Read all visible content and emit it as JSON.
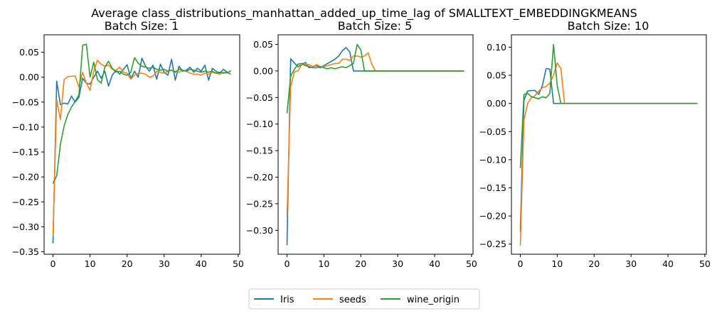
{
  "figure": {
    "suptitle": "Average class_distributions_manhattan_added_up_time_lag of SMALLTEXT_EMBEDDINGKMEANS"
  },
  "legend": {
    "placement": "bottom-center",
    "entries": [
      {
        "name": "Iris",
        "color": "#1f77b4"
      },
      {
        "name": "seeds",
        "color": "#ff7f0e"
      },
      {
        "name": "wine_origin",
        "color": "#2ca02c"
      }
    ]
  },
  "chart_data": [
    {
      "type": "line",
      "title": "Batch Size: 1",
      "xlabel": "",
      "ylabel": "",
      "xlim": [
        -2.4,
        50.4
      ],
      "ylim": [
        -0.355,
        0.085
      ],
      "xticks": [
        0,
        10,
        20,
        30,
        40,
        50
      ],
      "yticks": [
        -0.35,
        -0.3,
        -0.25,
        -0.2,
        -0.15,
        -0.1,
        -0.05,
        0.0,
        0.05
      ],
      "ytick_labels": [
        "−0.35",
        "−0.30",
        "−0.25",
        "−0.20",
        "−0.15",
        "−0.10",
        "−0.05",
        "0.00",
        "0.05"
      ],
      "grid": false,
      "series": [
        {
          "name": "Iris",
          "color": "#1f77b4",
          "x": [
            0,
            1,
            2,
            3,
            4,
            5,
            6,
            7,
            8,
            9,
            10,
            11,
            12,
            13,
            14,
            15,
            16,
            17,
            18,
            19,
            20,
            21,
            22,
            23,
            24,
            25,
            26,
            27,
            28,
            29,
            30,
            31,
            32,
            33,
            34,
            35,
            36,
            37,
            38,
            39,
            40,
            41,
            42,
            43,
            44,
            45,
            46,
            47,
            48
          ],
          "y": [
            -0.333,
            -0.008,
            -0.055,
            -0.052,
            -0.054,
            -0.038,
            -0.05,
            -0.04,
            -0.002,
            -0.012,
            -0.014,
            0.0,
            0.012,
            -0.002,
            0.012,
            -0.018,
            0.004,
            0.014,
            0.006,
            0.016,
            0.025,
            -0.003,
            0.012,
            0.0,
            0.038,
            0.022,
            0.012,
            0.024,
            -0.004,
            0.026,
            0.01,
            0.004,
            0.036,
            -0.006,
            0.022,
            0.012,
            0.014,
            0.02,
            0.01,
            0.018,
            0.012,
            0.024,
            -0.006,
            0.018,
            0.012,
            0.008,
            0.016,
            0.01,
            0.012
          ]
        },
        {
          "name": "seeds",
          "color": "#ff7f0e",
          "x": [
            0,
            1,
            2,
            3,
            4,
            5,
            6,
            7,
            8,
            9,
            10,
            11,
            12,
            13,
            14,
            15,
            16,
            17,
            18,
            19,
            20,
            21,
            22,
            23,
            24,
            25,
            26,
            27,
            28,
            29,
            30,
            31,
            32,
            33,
            34,
            35,
            36,
            37,
            38,
            39,
            40,
            41,
            42,
            43,
            44,
            45,
            46,
            47,
            48
          ],
          "y": [
            -0.318,
            -0.045,
            -0.085,
            -0.005,
            0.001,
            0.002,
            0.002,
            -0.02,
            0.01,
            -0.012,
            -0.026,
            0.012,
            0.034,
            0.026,
            0.022,
            0.024,
            0.016,
            0.014,
            0.02,
            0.01,
            0.008,
            -0.004,
            0.004,
            0.008,
            0.008,
            0.006,
            0.0,
            0.002,
            0.012,
            0.01,
            0.008,
            0.012,
            0.014,
            0.012,
            0.01,
            0.014,
            0.012,
            0.008,
            0.006,
            0.006,
            0.004,
            0.008,
            0.006,
            0.01,
            0.008,
            0.006,
            0.01,
            0.008,
            0.014
          ]
        },
        {
          "name": "wine_origin",
          "color": "#2ca02c",
          "x": [
            0,
            1,
            2,
            3,
            4,
            5,
            6,
            7,
            8,
            9,
            10,
            11,
            12,
            13,
            14,
            15,
            16,
            17,
            18,
            19,
            20,
            21,
            22,
            23,
            24,
            25,
            26,
            27,
            28,
            29,
            30,
            31,
            32,
            33,
            34,
            35,
            36,
            37,
            38,
            39,
            40,
            41,
            42,
            43,
            44,
            45,
            46,
            47,
            48
          ],
          "y": [
            -0.213,
            -0.198,
            -0.135,
            -0.098,
            -0.075,
            -0.06,
            -0.048,
            -0.035,
            0.064,
            0.066,
            0.0,
            0.03,
            -0.005,
            -0.012,
            0.02,
            0.032,
            0.018,
            0.01,
            0.012,
            0.006,
            0.004,
            0.01,
            0.039,
            0.028,
            0.022,
            0.02,
            0.018,
            0.02,
            0.016,
            0.014,
            0.016,
            0.012,
            0.014,
            0.01,
            0.016,
            0.014,
            0.012,
            0.016,
            0.014,
            0.012,
            0.01,
            0.012,
            0.01,
            0.012,
            0.008,
            0.01,
            0.008,
            0.01,
            0.006
          ]
        }
      ]
    },
    {
      "type": "line",
      "title": "Batch Size: 5",
      "xlabel": "",
      "ylabel": "",
      "xlim": [
        -2.4,
        50.4
      ],
      "ylim": [
        -0.345,
        0.068
      ],
      "xticks": [
        0,
        10,
        20,
        30,
        40,
        50
      ],
      "yticks": [
        -0.3,
        -0.25,
        -0.2,
        -0.15,
        -0.1,
        -0.05,
        0.0,
        0.05
      ],
      "ytick_labels": [
        "−0.30",
        "−0.25",
        "−0.20",
        "−0.15",
        "−0.10",
        "−0.05",
        "0.00",
        "0.05"
      ],
      "grid": false,
      "series": [
        {
          "name": "Iris",
          "color": "#1f77b4",
          "x": [
            0,
            1,
            2,
            3,
            4,
            5,
            6,
            7,
            8,
            9,
            10,
            11,
            12,
            13,
            14,
            15,
            16,
            17,
            18,
            19,
            20,
            21,
            22,
            23,
            24,
            25,
            26,
            27,
            28,
            29,
            30,
            31,
            32,
            33,
            34,
            35,
            36,
            37,
            38,
            39,
            40,
            41,
            42,
            43,
            44,
            45,
            46,
            47,
            48
          ],
          "y": [
            -0.328,
            0.023,
            0.015,
            0.008,
            0.012,
            0.016,
            0.006,
            0.008,
            0.01,
            0.006,
            0.01,
            0.014,
            0.018,
            0.022,
            0.028,
            0.038,
            0.044,
            0.036,
            0.0,
            0.0,
            0.0,
            0.0,
            0.0,
            0.0,
            0.0,
            0.0,
            0.0,
            0.0,
            0.0,
            0.0,
            0.0,
            0.0,
            0.0,
            0.0,
            0.0,
            0.0,
            0.0,
            0.0,
            0.0,
            0.0,
            0.0,
            0.0,
            0.0,
            0.0,
            0.0,
            0.0,
            0.0,
            0.0,
            0.0
          ]
        },
        {
          "name": "seeds",
          "color": "#ff7f0e",
          "x": [
            0,
            1,
            2,
            3,
            4,
            5,
            6,
            7,
            8,
            9,
            10,
            11,
            12,
            13,
            14,
            15,
            16,
            17,
            18,
            19,
            20,
            21,
            22,
            23,
            24,
            25,
            26,
            27,
            28,
            29,
            30,
            31,
            32,
            33,
            34,
            35,
            36,
            37,
            38,
            39,
            40,
            41,
            42,
            43,
            44,
            45,
            46,
            47,
            48
          ],
          "y": [
            -0.275,
            -0.03,
            -0.002,
            0.0,
            0.012,
            0.012,
            0.012,
            0.008,
            0.012,
            0.008,
            0.008,
            0.01,
            0.012,
            0.014,
            0.014,
            0.022,
            0.022,
            0.02,
            0.028,
            0.028,
            0.026,
            0.028,
            0.034,
            0.012,
            0.0,
            0.0,
            0.0,
            0.0,
            0.0,
            0.0,
            0.0,
            0.0,
            0.0,
            0.0,
            0.0,
            0.0,
            0.0,
            0.0,
            0.0,
            0.0,
            0.0,
            0.0,
            0.0,
            0.0,
            0.0,
            0.0,
            0.0,
            0.0,
            0.0
          ]
        },
        {
          "name": "wine_origin",
          "color": "#2ca02c",
          "x": [
            0,
            1,
            2,
            3,
            4,
            5,
            6,
            7,
            8,
            9,
            10,
            11,
            12,
            13,
            14,
            15,
            16,
            17,
            18,
            19,
            20,
            21,
            22,
            23,
            24,
            25,
            26,
            27,
            28,
            29,
            30,
            31,
            32,
            33,
            34,
            35,
            36,
            37,
            38,
            39,
            40,
            41,
            42,
            43,
            44,
            45,
            46,
            47,
            48
          ],
          "y": [
            -0.08,
            -0.01,
            0.003,
            0.013,
            0.014,
            0.01,
            0.008,
            0.006,
            0.006,
            0.008,
            0.006,
            0.004,
            0.006,
            0.004,
            0.006,
            0.008,
            0.006,
            0.01,
            0.014,
            0.05,
            0.04,
            0.0,
            0.0,
            0.0,
            0.0,
            0.0,
            0.0,
            0.0,
            0.0,
            0.0,
            0.0,
            0.0,
            0.0,
            0.0,
            0.0,
            0.0,
            0.0,
            0.0,
            0.0,
            0.0,
            0.0,
            0.0,
            0.0,
            0.0,
            0.0,
            0.0,
            0.0,
            0.0,
            0.0
          ]
        }
      ]
    },
    {
      "type": "line",
      "title": "Batch Size: 10",
      "xlabel": "",
      "ylabel": "",
      "xlim": [
        -2.4,
        50.4
      ],
      "ylim": [
        -0.268,
        0.122
      ],
      "xticks": [
        0,
        10,
        20,
        30,
        40,
        50
      ],
      "yticks": [
        -0.25,
        -0.2,
        -0.15,
        -0.1,
        -0.05,
        0.0,
        0.05,
        0.1
      ],
      "ytick_labels": [
        "−0.25",
        "−0.20",
        "−0.15",
        "−0.10",
        "−0.05",
        "0.00",
        "0.05",
        "0.10"
      ],
      "grid": false,
      "series": [
        {
          "name": "Iris",
          "color": "#1f77b4",
          "x": [
            0,
            1,
            2,
            3,
            4,
            5,
            6,
            7,
            8,
            9,
            10,
            11,
            12,
            13,
            14,
            15,
            16,
            17,
            18,
            19,
            20,
            21,
            22,
            23,
            24,
            25,
            26,
            27,
            28,
            29,
            30,
            31,
            32,
            33,
            34,
            35,
            36,
            37,
            38,
            39,
            40,
            41,
            42,
            43,
            44,
            45,
            46,
            47,
            48
          ],
          "y": [
            -0.228,
            0.006,
            0.022,
            0.023,
            0.023,
            0.016,
            0.032,
            0.062,
            0.061,
            0.0,
            0.0,
            0.0,
            0.0,
            0.0,
            0.0,
            0.0,
            0.0,
            0.0,
            0.0,
            0.0,
            0.0,
            0.0,
            0.0,
            0.0,
            0.0,
            0.0,
            0.0,
            0.0,
            0.0,
            0.0,
            0.0,
            0.0,
            0.0,
            0.0,
            0.0,
            0.0,
            0.0,
            0.0,
            0.0,
            0.0,
            0.0,
            0.0,
            0.0,
            0.0,
            0.0,
            0.0,
            0.0,
            0.0,
            0.0
          ]
        },
        {
          "name": "seeds",
          "color": "#ff7f0e",
          "x": [
            0,
            1,
            2,
            3,
            4,
            5,
            6,
            7,
            8,
            9,
            10,
            11,
            12,
            13,
            14,
            15,
            16,
            17,
            18,
            19,
            20,
            21,
            22,
            23,
            24,
            25,
            26,
            27,
            28,
            29,
            30,
            31,
            32,
            33,
            34,
            35,
            36,
            37,
            38,
            39,
            40,
            41,
            42,
            43,
            44,
            45,
            46,
            47,
            48
          ],
          "y": [
            -0.253,
            -0.03,
            0.0,
            0.01,
            0.014,
            0.022,
            0.028,
            0.03,
            0.036,
            0.05,
            0.072,
            0.062,
            0.0,
            0.0,
            0.0,
            0.0,
            0.0,
            0.0,
            0.0,
            0.0,
            0.0,
            0.0,
            0.0,
            0.0,
            0.0,
            0.0,
            0.0,
            0.0,
            0.0,
            0.0,
            0.0,
            0.0,
            0.0,
            0.0,
            0.0,
            0.0,
            0.0,
            0.0,
            0.0,
            0.0,
            0.0,
            0.0,
            0.0,
            0.0,
            0.0,
            0.0,
            0.0,
            0.0,
            0.0
          ]
        },
        {
          "name": "wine_origin",
          "color": "#2ca02c",
          "x": [
            0,
            1,
            2,
            3,
            4,
            5,
            6,
            7,
            8,
            9,
            10,
            11,
            12,
            13,
            14,
            15,
            16,
            17,
            18,
            19,
            20,
            21,
            22,
            23,
            24,
            25,
            26,
            27,
            28,
            29,
            30,
            31,
            32,
            33,
            34,
            35,
            36,
            37,
            38,
            39,
            40,
            41,
            42,
            43,
            44,
            45,
            46,
            47,
            48
          ],
          "y": [
            -0.115,
            0.016,
            0.018,
            0.012,
            0.01,
            0.008,
            0.012,
            0.01,
            0.018,
            0.105,
            0.032,
            0.0,
            0.0,
            0.0,
            0.0,
            0.0,
            0.0,
            0.0,
            0.0,
            0.0,
            0.0,
            0.0,
            0.0,
            0.0,
            0.0,
            0.0,
            0.0,
            0.0,
            0.0,
            0.0,
            0.0,
            0.0,
            0.0,
            0.0,
            0.0,
            0.0,
            0.0,
            0.0,
            0.0,
            0.0,
            0.0,
            0.0,
            0.0,
            0.0,
            0.0,
            0.0,
            0.0,
            0.0,
            0.0
          ]
        }
      ]
    }
  ]
}
